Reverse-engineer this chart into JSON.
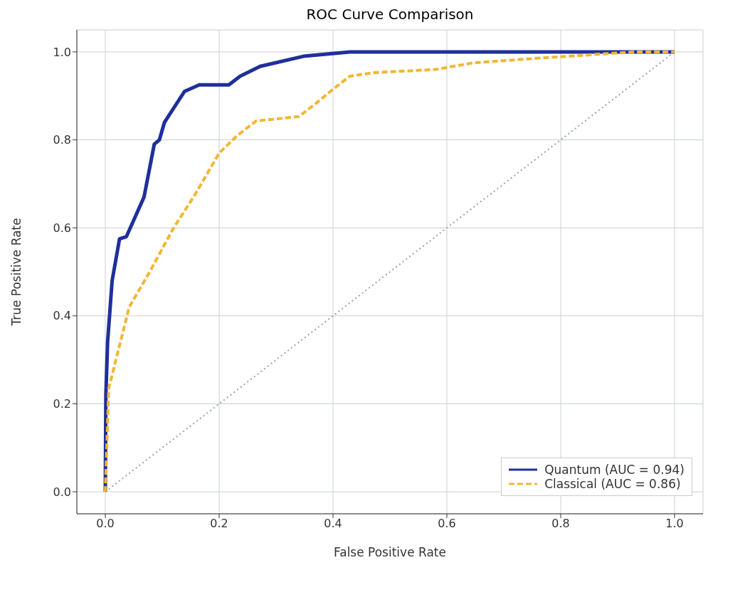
{
  "chart_data": {
    "type": "line",
    "title": "ROC Curve Comparison",
    "xlabel": "False Positive Rate",
    "ylabel": "True Positive Rate",
    "xlim": [
      -0.05,
      1.05
    ],
    "ylim": [
      -0.05,
      1.05
    ],
    "xticks": [
      {
        "value": 0,
        "label": "0.0"
      },
      {
        "value": 0.2,
        "label": "0.2"
      },
      {
        "value": 0.4,
        "label": "0.4"
      },
      {
        "value": 0.6,
        "label": "0.6"
      },
      {
        "value": 0.8,
        "label": "0.8"
      },
      {
        "value": 1,
        "label": "1.0"
      }
    ],
    "yticks": [
      {
        "value": 0,
        "label": "0.0"
      },
      {
        "value": 0.2,
        "label": "0.2"
      },
      {
        "value": 0.4,
        "label": "0.4"
      },
      {
        "value": 0.6,
        "label": "0.6"
      },
      {
        "value": 0.8,
        "label": "0.8"
      },
      {
        "value": 1,
        "label": "1.0"
      }
    ],
    "grid": true,
    "legend": "bottom right",
    "series": [
      {
        "name": "Quantum (AUC = 0.94)",
        "color": "#1f2f9a",
        "line_style": "solid",
        "x": [
          0,
          0.001,
          0.004,
          0.012,
          0.025,
          0.037,
          0.068,
          0.086,
          0.095,
          0.104,
          0.139,
          0.165,
          0.217,
          0.237,
          0.272,
          0.348,
          0.43,
          1
        ],
        "values": [
          0,
          0.22,
          0.34,
          0.48,
          0.575,
          0.58,
          0.67,
          0.79,
          0.8,
          0.84,
          0.91,
          0.925,
          0.925,
          0.945,
          0.967,
          0.99,
          1,
          1
        ]
      },
      {
        "name": "Classical (AUC = 0.86)",
        "color": "#f2b632",
        "line_style": "dashed",
        "x": [
          0,
          0.006,
          0.042,
          0.078,
          0.12,
          0.155,
          0.2,
          0.232,
          0.265,
          0.34,
          0.37,
          0.4,
          0.43,
          0.473,
          0.58,
          0.646,
          0.764,
          0.93,
          1
        ],
        "values": [
          0,
          0.235,
          0.42,
          0.5,
          0.6,
          0.67,
          0.77,
          0.81,
          0.843,
          0.853,
          0.883,
          0.915,
          0.945,
          0.953,
          0.96,
          0.975,
          0.986,
          1,
          1
        ]
      },
      {
        "color": "#a0a0a0",
        "line_style": "dotted",
        "x": [
          0,
          1
        ],
        "values": [
          0,
          1
        ]
      }
    ]
  }
}
